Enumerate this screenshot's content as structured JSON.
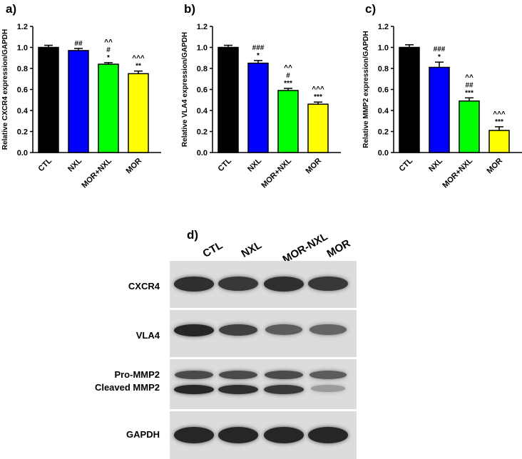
{
  "chart_data": [
    {
      "type": "bar",
      "panel": "a)",
      "categories": [
        "CTL",
        "NXL",
        "MOR+NXL",
        "MOR"
      ],
      "values": [
        1.0,
        0.97,
        0.84,
        0.75
      ],
      "errors": [
        0.02,
        0.02,
        0.015,
        0.025
      ],
      "annotations": [
        [],
        [
          "##"
        ],
        [
          "^^",
          "#",
          "*"
        ],
        [
          "^^^",
          "**"
        ]
      ],
      "colors": [
        "#000000",
        "#0000ff",
        "#00ff00",
        "#ffff00"
      ],
      "ylabel": "Relative CXCR4 expression/GAPDH",
      "ylim": [
        0,
        1.2
      ],
      "yticks": [
        "0.0",
        "0.2",
        "0.4",
        "0.6",
        "0.8",
        "1.0",
        "1.2"
      ]
    },
    {
      "type": "bar",
      "panel": "b)",
      "categories": [
        "CTL",
        "NXL",
        "MOR+NXL",
        "MOR"
      ],
      "values": [
        1.0,
        0.85,
        0.59,
        0.46
      ],
      "errors": [
        0.02,
        0.025,
        0.02,
        0.02
      ],
      "annotations": [
        [],
        [
          "###",
          "*"
        ],
        [
          "^^",
          "#",
          "***"
        ],
        [
          "^^^",
          "***"
        ]
      ],
      "colors": [
        "#000000",
        "#0000ff",
        "#00ff00",
        "#ffff00"
      ],
      "ylabel": "Relative VLA4 expression/GAPDH",
      "ylim": [
        0,
        1.2
      ],
      "yticks": [
        "0.0",
        "0.2",
        "0.4",
        "0.6",
        "0.8",
        "1.0",
        "1.2"
      ]
    },
    {
      "type": "bar",
      "panel": "c)",
      "categories": [
        "CTL",
        "NXL",
        "MOR+NXL",
        "MOR"
      ],
      "values": [
        1.0,
        0.81,
        0.49,
        0.21
      ],
      "errors": [
        0.025,
        0.05,
        0.03,
        0.035
      ],
      "annotations": [
        [],
        [
          "###",
          "*"
        ],
        [
          "^^",
          "##",
          "***"
        ],
        [
          "^^^",
          "***"
        ]
      ],
      "colors": [
        "#000000",
        "#0000ff",
        "#00ff00",
        "#ffff00"
      ],
      "ylabel": "Relative MMP2 expression/GAPDH",
      "ylim": [
        0,
        1.2
      ],
      "yticks": [
        "0.0",
        "0.2",
        "0.4",
        "0.6",
        "0.8",
        "1.0",
        "1.2"
      ]
    }
  ],
  "blot": {
    "panel": "d)",
    "lanes": [
      "CTL",
      "NXL",
      "MOR-NXL",
      "MOR"
    ],
    "rows": [
      {
        "label": "CXCR4",
        "intensity": [
          0.85,
          0.8,
          0.85,
          0.8
        ]
      },
      {
        "label": "VLA4",
        "intensity": [
          0.9,
          0.75,
          0.6,
          0.55
        ]
      },
      {
        "label": "Pro-MMP2",
        "label2": "Cleaved MMP2",
        "intensity": [
          0.7,
          0.7,
          0.7,
          0.6
        ],
        "intensity2": [
          0.9,
          0.85,
          0.8,
          0.25
        ]
      },
      {
        "label": "GAPDH",
        "intensity": [
          0.9,
          0.9,
          0.9,
          0.9
        ]
      }
    ]
  }
}
